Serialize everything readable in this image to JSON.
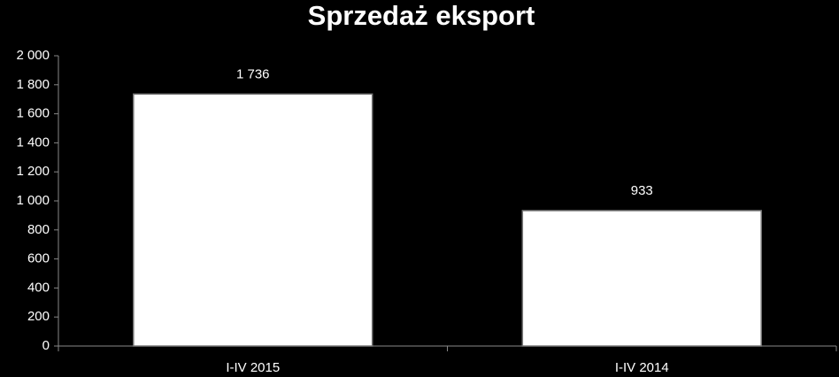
{
  "chart_data": {
    "type": "bar",
    "title": "Sprzedaż eksport",
    "categories": [
      "I-IV 2015",
      "I-IV 2014"
    ],
    "values": [
      1736,
      933
    ],
    "value_labels": [
      "1 736",
      "933"
    ],
    "color": "#ffffff",
    "ylim": [
      0,
      2000
    ],
    "yticks": [
      0,
      200,
      400,
      600,
      800,
      {
        "value": 1000,
        "label": "1 000"
      },
      {
        "value": 1200,
        "label": "1 200"
      },
      {
        "value": 1400,
        "label": "1 400"
      },
      {
        "value": 1600,
        "label": "1 600"
      },
      {
        "value": 1800,
        "label": "1 800"
      },
      {
        "value": 2000,
        "label": "2 000"
      }
    ]
  }
}
